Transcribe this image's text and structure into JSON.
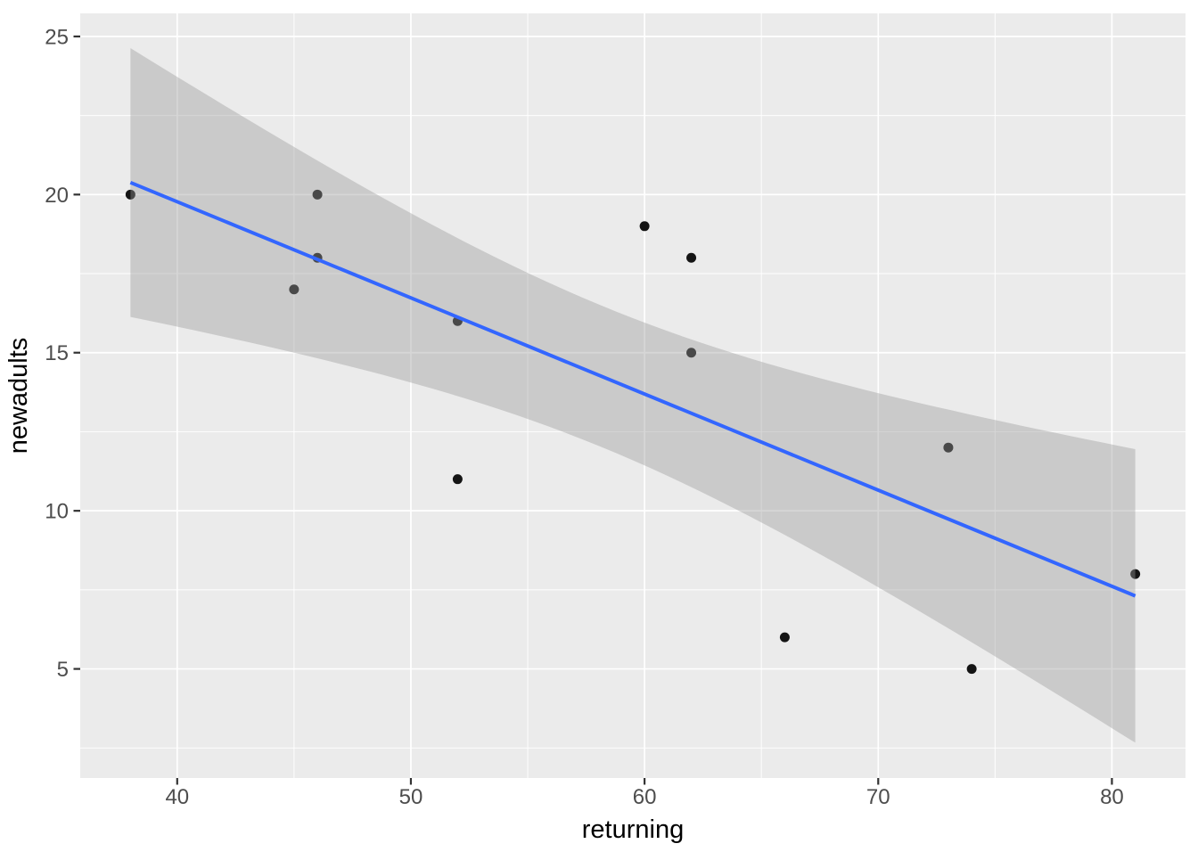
{
  "figure": {
    "kind": "ggplot-style scatter plot with linear smooth and confidence band",
    "background": "#FFFFFF"
  },
  "chart_data": {
    "type": "scatter",
    "title": "",
    "xlabel": "returning",
    "ylabel": "newadults",
    "points": [
      [
        38,
        20
      ],
      [
        45,
        17
      ],
      [
        46,
        20
      ],
      [
        46,
        18
      ],
      [
        52,
        16
      ],
      [
        52,
        11
      ],
      [
        60,
        19
      ],
      [
        62,
        18
      ],
      [
        62,
        15
      ],
      [
        66,
        6
      ],
      [
        73,
        12
      ],
      [
        74,
        5
      ],
      [
        81,
        8
      ]
    ],
    "x_breaks": [
      40,
      50,
      60,
      70,
      80
    ],
    "x_minor_breaks": [
      45,
      55,
      65,
      75
    ],
    "y_breaks": [
      5,
      10,
      15,
      20,
      25
    ],
    "y_minor_breaks": [
      2.5,
      7.5,
      12.5,
      17.5,
      22.5
    ],
    "xlim": [
      35.85,
      83.15
    ],
    "ylim": [
      1.55,
      25.73
    ],
    "smooth": {
      "method": "lm",
      "ci_level": 0.95,
      "show_ribbon": true,
      "x_range": [
        38,
        81
      ]
    },
    "grid": true,
    "legend_position": "none"
  },
  "style": {
    "panel_bg": "#EBEBEB",
    "grid_color": "#FFFFFF",
    "point_color": "#141414",
    "line_color": "#3366FF",
    "ribbon_color": "rgba(153,153,153,0.4)",
    "axis_text_color": "#4D4D4D",
    "axis_title_color": "#000000",
    "tick_color": "#333333"
  }
}
